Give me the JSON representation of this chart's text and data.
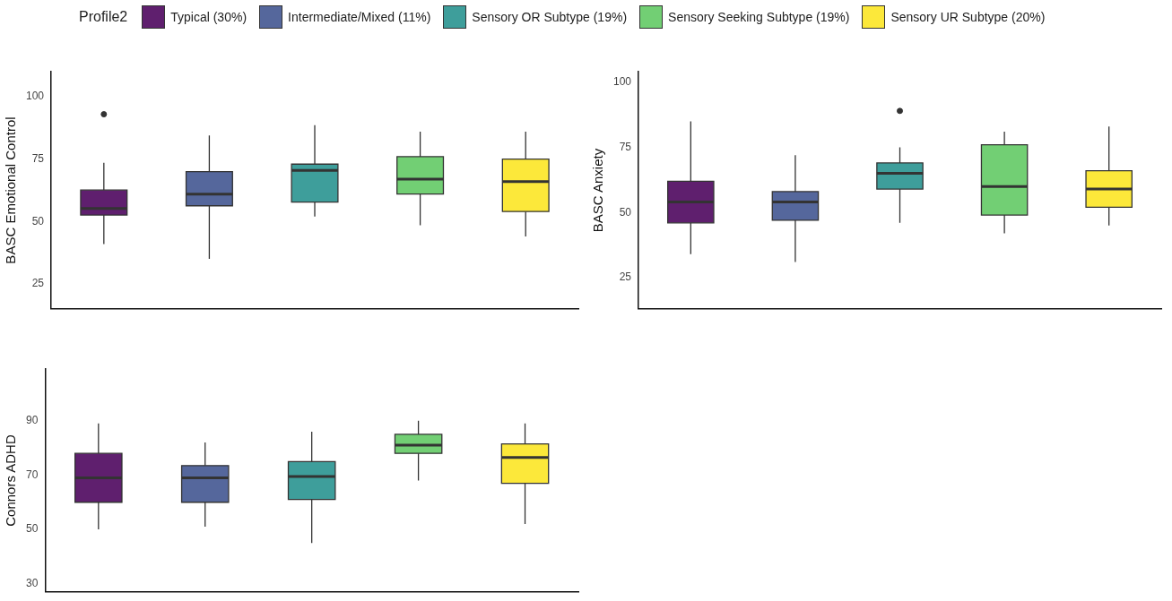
{
  "chart_data": [
    {
      "type": "box",
      "ylabel": "BASC Emotional Control",
      "legend_title": "Profile2",
      "legend": "top",
      "tick_labels": "y",
      "categories": [
        null,
        null,
        null,
        null,
        null
      ],
      "ylim": [
        15,
        110
      ],
      "yticks": [
        25,
        50,
        75,
        100
      ],
      "series": [
        {
          "name": "Typical (30%)",
          "color": "#5f1f6e",
          "boxes": [
            {
              "low": 41,
              "q1": 52.6,
              "median": 55.2,
              "q3": 62.6,
              "high": 73.5,
              "outliers": [
                93
              ]
            },
            null,
            null,
            null,
            null
          ]
        },
        {
          "name": "Intermediate/Mixed (11%)",
          "color": "#55679c",
          "boxes": [
            null,
            {
              "low": 35,
              "q1": 56.3,
              "median": 61,
              "q3": 70,
              "high": 84.5
            },
            null,
            null,
            null
          ]
        },
        {
          "name": "Sensory OR Subtype (19%)",
          "color": "#3e9e9b",
          "boxes": [
            null,
            null,
            {
              "low": 52,
              "q1": 57.8,
              "median": 70.5,
              "q3": 73,
              "high": 88.6
            },
            null,
            null
          ]
        },
        {
          "name": "Sensory Seeking Subtype (19%)",
          "color": "#72cf74",
          "boxes": [
            null,
            null,
            null,
            {
              "low": 48.5,
              "q1": 61,
              "median": 67,
              "q3": 76,
              "high": 86
            },
            null
          ]
        },
        {
          "name": "Sensory UR Subtype (20%)",
          "color": "#fce83a",
          "boxes": [
            null,
            null,
            null,
            null,
            {
              "low": 44,
              "q1": 54,
              "median": 66,
              "q3": 75,
              "high": 86
            }
          ]
        }
      ]
    },
    {
      "type": "box",
      "ylabel": "BASC Anxiety",
      "tick_labels": "y",
      "categories": [
        null,
        null,
        null,
        null,
        null
      ],
      "ylim": [
        13,
        104
      ],
      "yticks": [
        25,
        50,
        75,
        100
      ],
      "series": [
        {
          "color": "#5f1f6e",
          "boxes": [
            {
              "low": 34,
              "q1": 46,
              "median": 54,
              "q3": 62,
              "high": 85
            },
            null,
            null,
            null,
            null
          ]
        },
        {
          "color": "#55679c",
          "boxes": [
            null,
            {
              "low": 31,
              "q1": 47,
              "median": 54,
              "q3": 58,
              "high": 72
            },
            null,
            null,
            null
          ]
        },
        {
          "color": "#3e9e9b",
          "boxes": [
            null,
            null,
            {
              "low": 46,
              "q1": 59,
              "median": 65,
              "q3": 69,
              "high": 75,
              "outliers": [
                89
              ]
            },
            null,
            null
          ]
        },
        {
          "color": "#72cf74",
          "boxes": [
            null,
            null,
            null,
            {
              "low": 42,
              "q1": 49,
              "median": 60,
              "q3": 76,
              "high": 81
            },
            null
          ]
        },
        {
          "color": "#fce83a",
          "boxes": [
            null,
            null,
            null,
            null,
            {
              "low": 45,
              "q1": 52,
              "median": 59,
              "q3": 66,
              "high": 83
            }
          ]
        }
      ]
    },
    {
      "type": "box",
      "ylabel": "Connors ADHD",
      "tick_labels": "y",
      "categories": [
        null,
        null,
        null,
        null,
        null
      ],
      "ylim": [
        27,
        109
      ],
      "yticks": [
        30,
        50,
        70,
        90
      ],
      "series": [
        {
          "color": "#5f1f6e",
          "boxes": [
            {
              "low": 50,
              "q1": 60,
              "median": 69,
              "q3": 78,
              "high": 89
            },
            null,
            null,
            null,
            null
          ]
        },
        {
          "color": "#55679c",
          "boxes": [
            null,
            {
              "low": 51,
              "q1": 60,
              "median": 69,
              "q3": 73.5,
              "high": 82
            },
            null,
            null,
            null
          ]
        },
        {
          "color": "#3e9e9b",
          "boxes": [
            null,
            null,
            {
              "low": 45,
              "q1": 61,
              "median": 69.5,
              "q3": 75,
              "high": 86
            },
            null,
            null
          ]
        },
        {
          "color": "#72cf74",
          "boxes": [
            null,
            null,
            null,
            {
              "low": 68,
              "q1": 78,
              "median": 81,
              "q3": 85,
              "high": 90
            },
            null
          ]
        },
        {
          "color": "#fce83a",
          "boxes": [
            null,
            null,
            null,
            null,
            {
              "low": 52,
              "q1": 67,
              "median": 76.5,
              "q3": 81.5,
              "high": 89
            }
          ]
        }
      ]
    }
  ]
}
